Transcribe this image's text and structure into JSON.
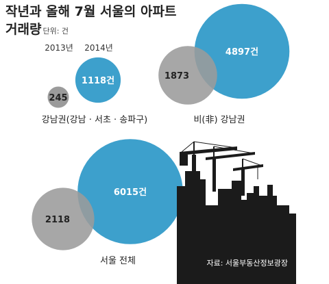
{
  "title": {
    "line1": "작년과 올해 7월 서울의 아파트",
    "line2": "거래량",
    "unit": "단위: 건"
  },
  "source": "자료: 서울부동산정보광장",
  "colors": {
    "current_year": "#3da0cc",
    "previous_year": "#9b9b9b",
    "silhouette": "#1b1b1b"
  },
  "chart_data": [
    {
      "type": "bubble",
      "group": "강남권(강남 · 서초 · 송파구)",
      "legend_years": [
        "2013년",
        "2014년"
      ],
      "series": [
        {
          "year": "2013년",
          "value": 245,
          "label": "245"
        },
        {
          "year": "2014년",
          "value": 1118,
          "label": "1118건"
        }
      ]
    },
    {
      "type": "bubble",
      "group": "비(非) 강남권",
      "series": [
        {
          "year": "2013년",
          "value": 1873,
          "label": "1873"
        },
        {
          "year": "2014년",
          "value": 4897,
          "label": "4897건"
        }
      ]
    },
    {
      "type": "bubble",
      "group": "서울 전체",
      "series": [
        {
          "year": "2013년",
          "value": 2118,
          "label": "2118"
        },
        {
          "year": "2014년",
          "value": 6015,
          "label": "6015건"
        }
      ]
    }
  ]
}
